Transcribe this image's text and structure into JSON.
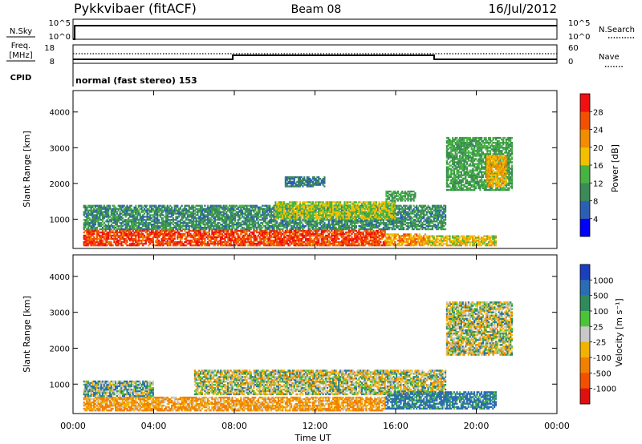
{
  "header": {
    "station": "Pykkvibaer (fitACF)",
    "beam": "Beam 08",
    "date": "16/Jul/2012"
  },
  "panels": {
    "nsky": {
      "left_label": "N.Sky",
      "right_label": "N.Search",
      "left_ticks": [
        "10^5",
        "10^0"
      ],
      "right_ticks": [
        "10^5",
        "10^0"
      ]
    },
    "freq": {
      "left_label_line1": "Freq.",
      "left_label_line2": "[MHz]",
      "right_label": "Nave",
      "left_ticks": [
        "18",
        "8"
      ],
      "right_ticks": [
        "60",
        "0"
      ]
    },
    "cpid": {
      "label": "CPID",
      "text": "normal (fast stereo) 153"
    },
    "power": {
      "ylabel": "Slant Range [km]",
      "yticks": [
        "1000",
        "2000",
        "3000",
        "4000"
      ],
      "colorbar_label": "Power [dB]",
      "colorbar_ticks": [
        "28",
        "24",
        "20",
        "16",
        "12",
        "8",
        "4"
      ],
      "colors": [
        "#0000ff",
        "#2b5fb3",
        "#3c8a55",
        "#47b441",
        "#f2c000",
        "#f28c00",
        "#f25000",
        "#f01010"
      ]
    },
    "velocity": {
      "ylabel": "Slant Range [km]",
      "yticks": [
        "1000",
        "2000",
        "3000",
        "4000"
      ],
      "colorbar_label": "Velocity [m s⁻¹]",
      "colorbar_ticks": [
        "1000",
        "500",
        "100",
        "25",
        "-25",
        "-100",
        "-500",
        "-1000"
      ],
      "colors": [
        "#1a3fbf",
        "#2a6db5",
        "#2f8c5a",
        "#4cc43a",
        "#c8c8c8",
        "#f2b200",
        "#f28000",
        "#f25000",
        "#e01010"
      ]
    }
  },
  "xaxis": {
    "label": "Time UT",
    "ticks": [
      "00:00",
      "04:00",
      "08:00",
      "12:00",
      "16:00",
      "20:00",
      "00:00"
    ]
  },
  "chart_data": [
    {
      "type": "heatmap",
      "name": "Power",
      "xlabel": "Time UT",
      "ylabel": "Slant Range [km]",
      "xlim": [
        "00:00",
        "24:00"
      ],
      "ylim": [
        180,
        4600
      ],
      "clim": [
        0,
        30
      ],
      "colorbar_label": "Power [dB]",
      "bands": [
        {
          "t0": 0.5,
          "t1": 15.5,
          "r0": 250,
          "r1": 700,
          "v": 27
        },
        {
          "t0": 15.5,
          "t1": 17.5,
          "r0": 250,
          "r1": 600,
          "v": 22
        },
        {
          "t0": 17.5,
          "t1": 21.0,
          "r0": 250,
          "r1": 550,
          "v": 18
        },
        {
          "t0": 0.5,
          "t1": 18.5,
          "r0": 700,
          "r1": 1400,
          "v": 10
        },
        {
          "t0": 10.0,
          "t1": 16.0,
          "r0": 1000,
          "r1": 1500,
          "v": 16
        },
        {
          "t0": 15.5,
          "t1": 17.0,
          "r0": 1500,
          "r1": 1800,
          "v": 12
        },
        {
          "t0": 10.5,
          "t1": 12.5,
          "r0": 1900,
          "r1": 2200,
          "v": 8
        },
        {
          "t0": 18.5,
          "t1": 21.8,
          "r0": 1800,
          "r1": 3300,
          "v": 12
        },
        {
          "t0": 20.5,
          "t1": 21.5,
          "r0": 1900,
          "r1": 2800,
          "v": 20
        }
      ]
    },
    {
      "type": "heatmap",
      "name": "Velocity",
      "xlabel": "Time UT",
      "ylabel": "Slant Range [km]",
      "xlim": [
        "00:00",
        "24:00"
      ],
      "ylim": [
        180,
        4600
      ],
      "clim": [
        -1000,
        1000
      ],
      "colorbar_label": "Velocity [m s-1]",
      "bands": [
        {
          "t0": 0.5,
          "t1": 15.5,
          "r0": 250,
          "r1": 650,
          "v": -120
        },
        {
          "t0": 0.5,
          "t1": 4.0,
          "r0": 650,
          "r1": 1100,
          "v": 60
        },
        {
          "t0": 6.0,
          "t1": 18.5,
          "r0": 700,
          "r1": 1400,
          "v": 0
        },
        {
          "t0": 15.5,
          "t1": 21.0,
          "r0": 300,
          "r1": 800,
          "v": 150
        },
        {
          "t0": 18.5,
          "t1": 21.8,
          "r0": 1800,
          "r1": 3300,
          "v": 0
        }
      ]
    }
  ]
}
